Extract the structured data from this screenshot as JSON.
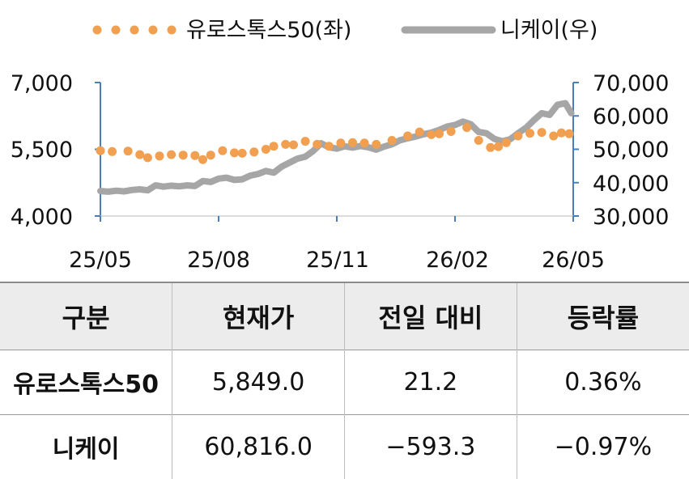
{
  "chart_data": {
    "type": "line",
    "legend": {
      "placement": "top",
      "items": [
        {
          "label": "유로스톡스50(좌)",
          "style": "dotted",
          "color": "#f0a050"
        },
        {
          "label": "니케이(우)",
          "style": "solid",
          "color": "#a6a6a6"
        }
      ]
    },
    "x_tick_labels": [
      "25/05",
      "25/08",
      "25/11",
      "26/02",
      "26/05"
    ],
    "y_left": {
      "range": [
        4000,
        7000
      ],
      "tick_labels": [
        "4,000",
        "5,500",
        "7,000"
      ],
      "ticks": [
        4000,
        5500,
        7000
      ]
    },
    "y_right": {
      "range": [
        30000,
        70000
      ],
      "tick_labels": [
        "30,000",
        "40,000",
        "50,000",
        "60,000",
        "70,000"
      ],
      "ticks": [
        30000,
        40000,
        50000,
        60000,
        70000
      ]
    },
    "axis_color": "#4a7ebb",
    "x_range_months": [
      0,
      12
    ],
    "series": [
      {
        "name": "유로스톡스50(좌)",
        "axis": "left",
        "color": "#f0a050",
        "style": "dots",
        "x": [
          0.0,
          0.3,
          0.7,
          1.0,
          1.2,
          1.5,
          1.8,
          2.1,
          2.4,
          2.6,
          2.8,
          3.1,
          3.4,
          3.6,
          3.9,
          4.2,
          4.4,
          4.7,
          4.9,
          5.2,
          5.5,
          5.8,
          6.1,
          6.4,
          6.7,
          7.0,
          7.4,
          7.8,
          8.1,
          8.4,
          8.6,
          8.9,
          9.3,
          9.6,
          9.9,
          10.1,
          10.3,
          10.6,
          10.9,
          11.2,
          11.5,
          11.7,
          11.9
        ],
        "values": [
          5470,
          5450,
          5460,
          5380,
          5310,
          5350,
          5380,
          5370,
          5360,
          5270,
          5370,
          5470,
          5420,
          5410,
          5440,
          5500,
          5570,
          5610,
          5600,
          5680,
          5610,
          5570,
          5640,
          5650,
          5640,
          5610,
          5700,
          5800,
          5890,
          5830,
          5850,
          5900,
          5990,
          5700,
          5540,
          5560,
          5650,
          5800,
          5860,
          5880,
          5800,
          5870,
          5849
        ]
      },
      {
        "name": "니케이(우)",
        "axis": "right",
        "color": "#a6a6a6",
        "style": "line",
        "x": [
          0.0,
          0.2,
          0.4,
          0.6,
          0.8,
          1.0,
          1.2,
          1.4,
          1.6,
          1.8,
          2.0,
          2.2,
          2.4,
          2.6,
          2.8,
          3.0,
          3.2,
          3.4,
          3.6,
          3.8,
          4.0,
          4.2,
          4.4,
          4.6,
          4.8,
          5.0,
          5.2,
          5.4,
          5.6,
          5.8,
          6.0,
          6.2,
          6.4,
          6.6,
          6.8,
          7.0,
          7.2,
          7.4,
          7.6,
          7.8,
          8.0,
          8.2,
          8.4,
          8.6,
          8.8,
          9.0,
          9.2,
          9.4,
          9.6,
          9.8,
          10.0,
          10.2,
          10.4,
          10.6,
          10.8,
          11.0,
          11.2,
          11.4,
          11.6,
          11.8,
          11.95
        ],
        "values": [
          37500,
          37300,
          37600,
          37400,
          37800,
          38000,
          37700,
          39200,
          38800,
          39100,
          38900,
          39200,
          39000,
          40500,
          40200,
          41200,
          41500,
          40800,
          41000,
          42100,
          42600,
          43500,
          43000,
          44800,
          46000,
          47200,
          47800,
          49500,
          51800,
          50600,
          50200,
          50900,
          50500,
          51000,
          50600,
          49900,
          50800,
          51500,
          52700,
          53300,
          53800,
          54500,
          55000,
          55800,
          56800,
          57300,
          58300,
          57500,
          55200,
          54800,
          53100,
          52400,
          53000,
          54800,
          56400,
          58700,
          60800,
          60300,
          63300,
          63800,
          60816
        ]
      }
    ]
  },
  "table": {
    "headers": [
      "구분",
      "현재가",
      "전일 대비",
      "등락률"
    ],
    "rows": [
      {
        "name": "유로스톡스50",
        "price": "5,849.0",
        "change": "21.2",
        "rate": "0.36%"
      },
      {
        "name": "니케이",
        "price": "60,816.0",
        "change": "−593.3",
        "rate": "−0.97%"
      }
    ]
  }
}
